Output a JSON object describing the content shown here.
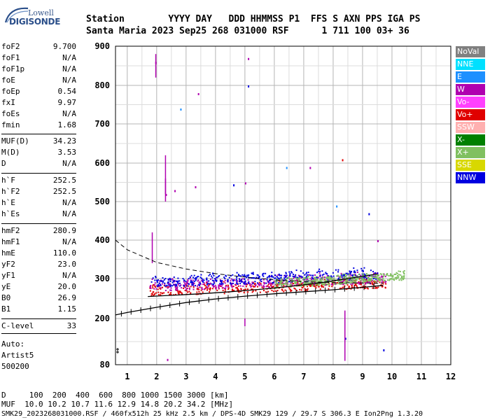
{
  "logo": {
    "line1": "Lowell",
    "line2": "DIGISONDE"
  },
  "header": {
    "labels_line": "Station        YYYY DAY   DDD HHMMSS P1  FFS S AXN PPS IGA PS",
    "values_line": "Santa Maria 2023 Sep25 268 031000 RSF      1 711 100 03+ 36"
  },
  "params_group1": [
    {
      "label": "foF2",
      "value": "9.700"
    },
    {
      "label": "foF1",
      "value": "N/A"
    },
    {
      "label": "foF1p",
      "value": "N/A"
    },
    {
      "label": "foE",
      "value": "N/A"
    },
    {
      "label": "foEp",
      "value": "0.54"
    },
    {
      "label": "fxI",
      "value": "9.97"
    },
    {
      "label": "foEs",
      "value": "N/A"
    },
    {
      "label": "fmin",
      "value": "1.68"
    }
  ],
  "params_group2": [
    {
      "label": "MUF(D)",
      "value": "34.23"
    },
    {
      "label": "M(D)",
      "value": "3.53"
    },
    {
      "label": "D",
      "value": "N/A"
    }
  ],
  "params_group3": [
    {
      "label": "h`F",
      "value": "252.5"
    },
    {
      "label": "h`F2",
      "value": "252.5"
    },
    {
      "label": "h`E",
      "value": "N/A"
    },
    {
      "label": "h`Es",
      "value": "N/A"
    }
  ],
  "params_group4": [
    {
      "label": "hmF2",
      "value": "280.9"
    },
    {
      "label": "hmF1",
      "value": "N/A"
    },
    {
      "label": "hmE",
      "value": "110.0"
    },
    {
      "label": "yF2",
      "value": "23.0"
    },
    {
      "label": "yF1",
      "value": "N/A"
    },
    {
      "label": "yE",
      "value": "20.0"
    },
    {
      "label": "B0",
      "value": "26.9"
    },
    {
      "label": "B1",
      "value": "1.15"
    }
  ],
  "params_group5": [
    {
      "label": "C-level",
      "value": "33"
    }
  ],
  "scaler": {
    "line1": "Auto:",
    "line2": "Artist5",
    "line3": "500200"
  },
  "legend": [
    {
      "label": "NoVal",
      "color": "#808080"
    },
    {
      "label": "NNE",
      "color": "#00e0ff"
    },
    {
      "label": "E",
      "color": "#1e90ff"
    },
    {
      "label": "W",
      "color": "#b000b0"
    },
    {
      "label": "Vo-",
      "color": "#ff40ff"
    },
    {
      "label": "Vo+",
      "color": "#e00000"
    },
    {
      "label": "SSW",
      "color": "#ffb0b0"
    },
    {
      "label": "X-",
      "color": "#008000"
    },
    {
      "label": "X+",
      "color": "#80c060"
    },
    {
      "label": "SSE",
      "color": "#d8d800"
    },
    {
      "label": "NNW",
      "color": "#0000e0"
    }
  ],
  "footer": {
    "distance_line": "D     100  200  400  600  800 1000 1500 3000 [km]",
    "muf_line": "MUF  10.0 10.2 10.7 11.6 12.9 14.8 20.2 34.2 [MHz]",
    "file_line": "SMK29_2023268031000.RSF / 460fx512h 25 kHz 2.5 km / DPS-4D SMK29 129 / 29.7 S 306.3 E Ion2Png 1.3.20"
  },
  "chart_data": {
    "type": "scatter",
    "xlabel": "",
    "ylabel": "",
    "x_ticks": [
      "1",
      "2",
      "3",
      "4",
      "5",
      "6",
      "7",
      "8",
      "9",
      "10",
      "11",
      "12"
    ],
    "y_ticks": [
      "80",
      "200",
      "300",
      "400",
      "500",
      "600",
      "700",
      "800",
      "900"
    ],
    "xlim": [
      0.6,
      12
    ],
    "y_scale_note": "non-linear height axis (km)",
    "grid": true,
    "legend_position": "right",
    "profile_curve": {
      "name": "",
      "x": [
        0.6,
        1.0,
        2.0,
        3.0,
        4.0,
        5.0,
        6.0,
        7.0,
        8.0,
        9.0,
        9.7
      ],
      "y": [
        209,
        215,
        228,
        240,
        249,
        256,
        262,
        267,
        272,
        278,
        283
      ]
    },
    "trace_curve": {
      "name": "",
      "x": [
        1.7,
        2.5,
        3.5,
        4.5,
        5.5,
        6.5,
        7.5,
        8.5,
        9.5
      ],
      "y": [
        255,
        258,
        262,
        267,
        273,
        280,
        289,
        300,
        312
      ]
    },
    "dashed_curve": {
      "name": "",
      "x": [
        0.6,
        1.0,
        2.0,
        3.0,
        4.0,
        5.0,
        6.0,
        7.0,
        8.0,
        9.0,
        9.7
      ],
      "y": [
        400,
        375,
        342,
        325,
        313,
        304,
        297,
        292,
        290,
        289,
        288
      ]
    },
    "echo_bands": [
      {
        "name": "Vo+",
        "color": "#e00000",
        "x_start": 1.75,
        "x_end": 9.8,
        "y_start": 258,
        "y_end": 318
      },
      {
        "name": "W",
        "color": "#b000b0",
        "x_start": 1.75,
        "x_end": 9.8,
        "y_start": 270,
        "y_end": 335
      },
      {
        "name": "NNW",
        "color": "#0000e0",
        "x_start": 1.8,
        "x_end": 9.5,
        "y_start": 280,
        "y_end": 345
      },
      {
        "name": "X+",
        "color": "#80c060",
        "x_start": 6.0,
        "x_end": 10.4,
        "y_start": 278,
        "y_end": 330
      }
    ]
  }
}
